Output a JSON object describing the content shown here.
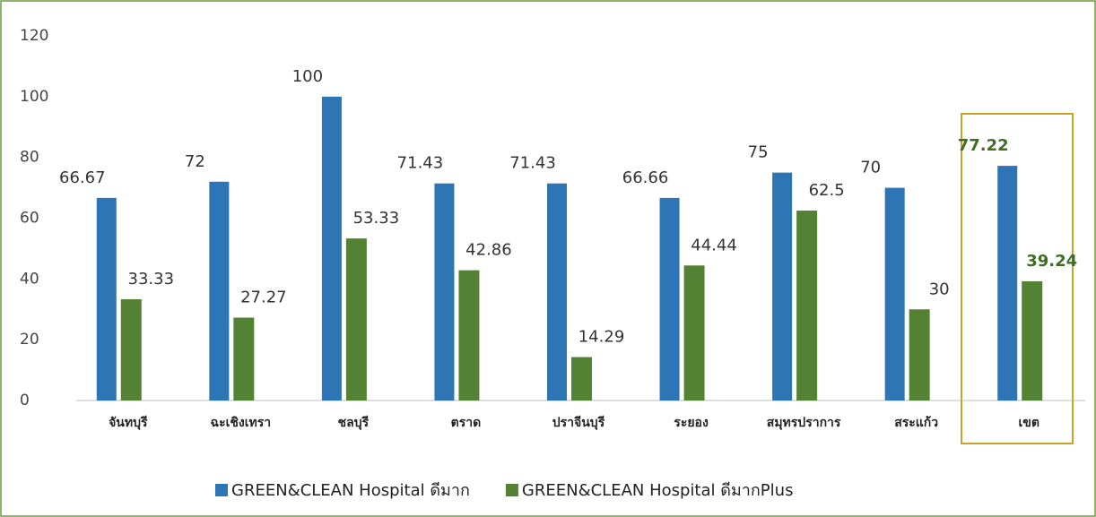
{
  "chart_data": {
    "type": "bar",
    "categories": [
      "จันทบุรี",
      "ฉะเชิงเทรา",
      "ชลบุรี",
      "ตราด",
      "ปราจีนบุรี",
      "ระยอง",
      "สมุทรปราการ",
      "สระแก้ว",
      "เขต"
    ],
    "series": [
      {
        "name": "GREEN&CLEAN Hospital ดีมาก",
        "color": "#2e75b6",
        "values": [
          66.67,
          72,
          100,
          71.43,
          71.43,
          66.66,
          75,
          70,
          77.22
        ]
      },
      {
        "name": "GREEN&CLEAN Hospital ดีมากPlus",
        "color": "#548235",
        "values": [
          33.33,
          27.27,
          53.33,
          42.86,
          14.29,
          44.44,
          62.5,
          30,
          39.24
        ]
      }
    ],
    "ylim": [
      0,
      120
    ],
    "yticks": [
      0,
      20,
      40,
      60,
      80,
      100,
      120
    ],
    "grid": false,
    "legend": "bottom"
  }
}
